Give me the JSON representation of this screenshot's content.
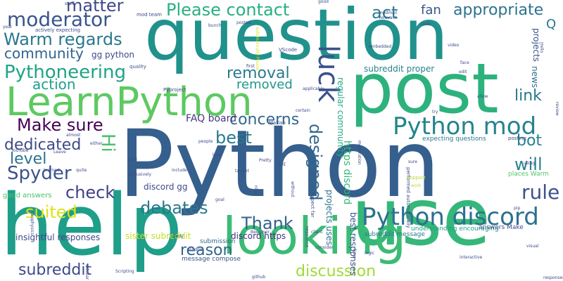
{
  "words": [
    {
      "text": "Python",
      "color": "#355f8d"
    },
    {
      "text": "question",
      "color": "#21918c"
    },
    {
      "text": "post",
      "color": "#2db27d"
    },
    {
      "text": "help",
      "color": "#1f9e89"
    },
    {
      "text": "use",
      "color": "#35b779"
    },
    {
      "text": "looking",
      "color": "#3bbb75"
    },
    {
      "text": "LearnPython",
      "color": "#5ec962"
    },
    {
      "text": "Python discord",
      "color": "#2d708e"
    },
    {
      "text": "Python mod",
      "color": "#25848e"
    },
    {
      "text": "Pythoneering",
      "color": "#20a386"
    },
    {
      "text": "moderator",
      "color": "#39568c"
    },
    {
      "text": "Warm regards",
      "color": "#2a788e"
    },
    {
      "text": "Please contact",
      "color": "#29af7f"
    },
    {
      "text": "appropriate",
      "color": "#2c728e"
    },
    {
      "text": "matter",
      "color": "#3e4a89"
    },
    {
      "text": "act",
      "color": "#287d8e"
    },
    {
      "text": "fan",
      "color": "#39568c"
    },
    {
      "text": "community",
      "color": "#33638d"
    },
    {
      "text": "action",
      "color": "#1fa188"
    },
    {
      "text": "removal",
      "color": "#297b8e"
    },
    {
      "text": "removed",
      "color": "#1f988b"
    },
    {
      "text": "luck",
      "color": "#3b528b"
    },
    {
      "text": "link",
      "color": "#2a788e"
    },
    {
      "text": "Make sure",
      "color": "#440154"
    },
    {
      "text": "concerns",
      "color": "#31688e"
    },
    {
      "text": "best",
      "color": "#2a788e"
    },
    {
      "text": "dedicated",
      "color": "#3e4a89"
    },
    {
      "text": "level",
      "color": "#2d708e"
    },
    {
      "text": "Spyder",
      "color": "#3b528b"
    },
    {
      "text": "Hi",
      "color": "#4ac16d"
    },
    {
      "text": "designed",
      "color": "#31688e"
    },
    {
      "text": "will",
      "color": "#26828e"
    },
    {
      "text": "bot",
      "color": "#27808e"
    },
    {
      "text": "check",
      "color": "#424086"
    },
    {
      "text": "debates",
      "color": "#2a788e"
    },
    {
      "text": "rule",
      "color": "#3b528b"
    },
    {
      "text": "suited",
      "color": "#dde318"
    },
    {
      "text": "Thank",
      "color": "#33638d"
    },
    {
      "text": "reason",
      "color": "#33638d"
    },
    {
      "text": "subreddit",
      "color": "#3e4a89"
    },
    {
      "text": "discussion",
      "color": "#a0da39"
    },
    {
      "text": "FAQ board",
      "color": "#453781"
    },
    {
      "text": "Q",
      "color": "#2a788e"
    },
    {
      "text": "gg python",
      "color": "#3e4a89"
    },
    {
      "text": "discord gg",
      "color": "#3e4a89"
    },
    {
      "text": "sister subreddit",
      "color": "#c2df23"
    },
    {
      "text": "discord https",
      "color": "#46327e"
    },
    {
      "text": "subreddit proper",
      "color": "#26828e"
    },
    {
      "text": "regular community",
      "color": "#22a884"
    },
    {
      "text": "https discord",
      "color": "#35b779"
    },
    {
      "text": "projects uses",
      "color": "#2d708e"
    },
    {
      "text": "best responses",
      "color": "#3b528b"
    },
    {
      "text": "news",
      "color": "#2c728e"
    },
    {
      "text": "projects",
      "color": "#3b528b"
    },
    {
      "text": "insightful responses",
      "color": "#3e4a89"
    },
    {
      "text": "good answers",
      "color": "#4ac16d"
    },
    {
      "text": "submission",
      "color": "#31688e"
    },
    {
      "text": "message compose",
      "color": "#3b528b"
    },
    {
      "text": "expecting questions",
      "color": "#2a788e"
    },
    {
      "text": "understanding encouraging",
      "color": "#1f9e89"
    },
    {
      "text": "answers Make",
      "color": "#3e4a89"
    },
    {
      "text": "subreddit message",
      "color": "#2a788e"
    },
    {
      "text": "places Warm",
      "color": "#52c569"
    },
    {
      "text": "actively expecting",
      "color": "#3e4a89"
    },
    {
      "text": "quality",
      "color": "#3b528b"
    },
    {
      "text": "mod team",
      "color": "#3e4a89"
    },
    {
      "text": "Matlab",
      "color": "#3e4a89"
    },
    {
      "text": "VScode",
      "color": "#3e4a89"
    },
    {
      "text": "Pyproject",
      "color": "#3e4a89"
    },
    {
      "text": "YouTube",
      "color": "#3e4a89"
    },
    {
      "text": "exclusively",
      "color": "#3e4a89"
    },
    {
      "text": "expect far",
      "color": "#3e4a89"
    },
    {
      "text": "resource",
      "color": "#3e4a89"
    },
    {
      "text": "posting",
      "color": "#3e4a89"
    },
    {
      "text": "performed automatically",
      "color": "#3e4a89"
    },
    {
      "text": "automatically Please",
      "color": "#dde318"
    },
    {
      "text": "video",
      "color": "#3e4a89"
    },
    {
      "text": "code",
      "color": "#3e4a89"
    },
    {
      "text": "first",
      "color": "#3e4a89"
    },
    {
      "text": "Hello",
      "color": "#3e4a89"
    },
    {
      "text": "support",
      "color": "#b5de2b"
    },
    {
      "text": "work",
      "color": "#b5de2b"
    },
    {
      "text": "interactive",
      "color": "#3e4a89"
    },
    {
      "text": "year",
      "color": "#3e4a89"
    },
    {
      "text": "taught",
      "color": "#3e4a89"
    },
    {
      "text": "Now",
      "color": "#3e4a89"
    },
    {
      "text": "logic",
      "color": "#3e4a89"
    },
    {
      "text": "moderation",
      "color": "#3e4a89"
    },
    {
      "text": "IDE",
      "color": "#3e4a89"
    },
    {
      "text": "almost",
      "color": "#3e4a89"
    },
    {
      "text": "without",
      "color": "#3e4a89"
    },
    {
      "text": "nice",
      "color": "#3e4a89"
    },
    {
      "text": "Pretty",
      "color": "#3e4a89"
    },
    {
      "text": "people",
      "color": "#3e4a89"
    },
    {
      "text": "relevant",
      "color": "#3e4a89"
    },
    {
      "text": "embedded",
      "color": "#3e4a89"
    },
    {
      "text": "modmail",
      "color": "#3e4a89"
    },
    {
      "text": "allow",
      "color": "#3e4a89"
    },
    {
      "text": "using",
      "color": "#3e4a89"
    },
    {
      "text": "try",
      "color": "#3e4a89"
    },
    {
      "text": "include",
      "color": "#3e4a89"
    },
    {
      "text": "sure",
      "color": "#3e4a89"
    },
    {
      "text": "review",
      "color": "#3e4a89"
    },
    {
      "text": "goal",
      "color": "#3e4a89"
    },
    {
      "text": "certain",
      "color": "#3e4a89"
    },
    {
      "text": "applicable",
      "color": "#3e4a89"
    },
    {
      "text": "either",
      "color": "#3e4a89"
    },
    {
      "text": "quite",
      "color": "#3e4a89"
    },
    {
      "text": "geophysics",
      "color": "#3e4a89"
    },
    {
      "text": "window",
      "color": "#3e4a89"
    },
    {
      "text": "github",
      "color": "#3e4a89"
    },
    {
      "text": "responses",
      "color": "#3e4a89"
    },
    {
      "text": "pip",
      "color": "#3e4a89"
    },
    {
      "text": "visual",
      "color": "#3e4a89"
    },
    {
      "text": "body",
      "color": "#3e4a89"
    },
    {
      "text": "client",
      "color": "#3e4a89"
    },
    {
      "text": "Beginner",
      "color": "#3e4a89"
    },
    {
      "text": "stuff",
      "color": "#3e4a89"
    },
    {
      "text": "learned",
      "color": "#3e4a89"
    },
    {
      "text": "lose",
      "color": "#3e4a89"
    },
    {
      "text": "kind",
      "color": "#3e4a89"
    },
    {
      "text": "consider",
      "color": "#3e4a89"
    },
    {
      "text": "Leave",
      "color": "#3e4a89"
    },
    {
      "text": "face",
      "color": "#3e4a89"
    },
    {
      "text": "edit",
      "color": "#3e4a89"
    },
    {
      "text": "sidebar",
      "color": "#3e4a89"
    },
    {
      "text": "Scripting",
      "color": "#3e4a89"
    },
    {
      "text": "good",
      "color": "#3e4a89"
    },
    {
      "text": "posted",
      "color": "#3e4a89"
    },
    {
      "text": "bunch",
      "color": "#3e4a89"
    }
  ]
}
